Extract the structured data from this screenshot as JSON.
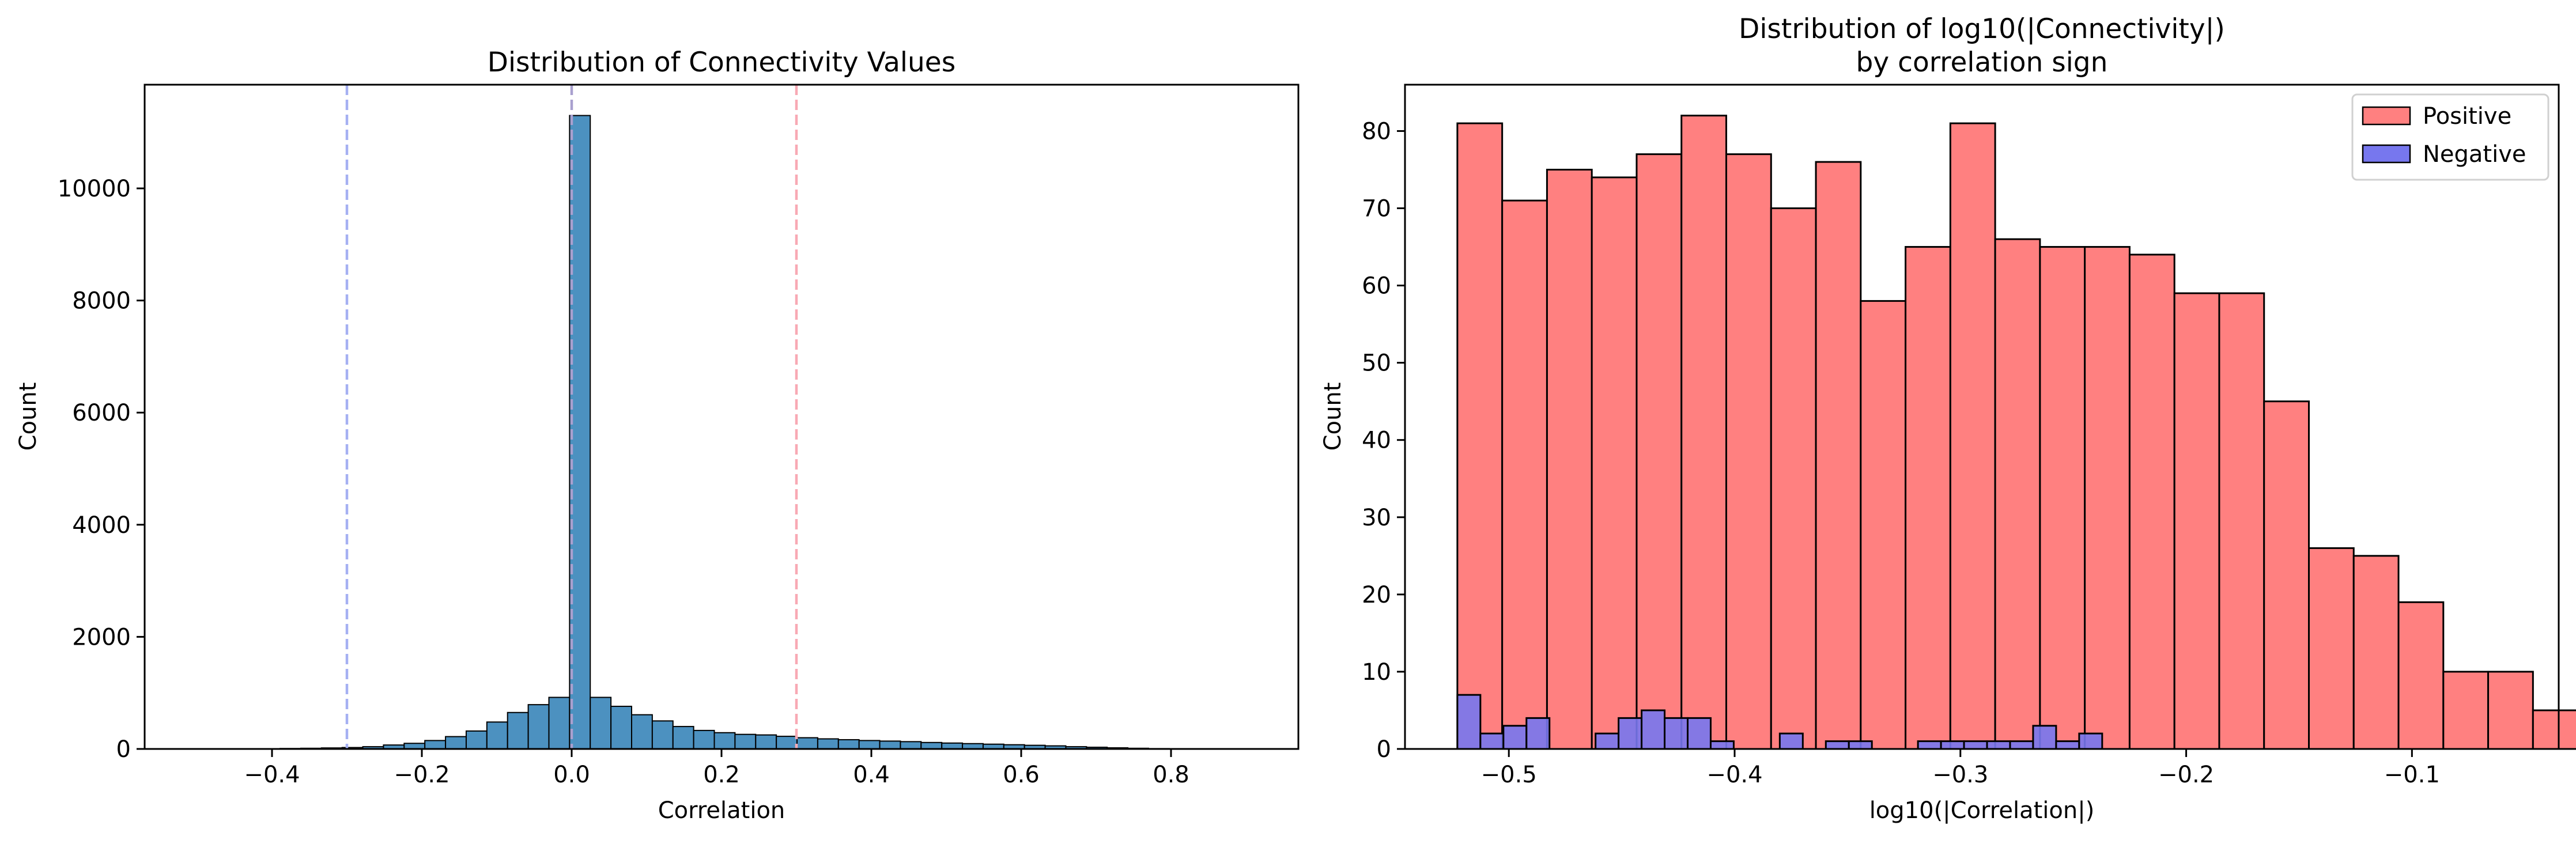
{
  "chart_data": [
    {
      "type": "histogram",
      "title": "Distribution of Connectivity Values",
      "xlabel": "Correlation",
      "ylabel": "Count",
      "xlim": [
        -0.57,
        0.97
      ],
      "ylim": [
        0,
        11850
      ],
      "xticks": [
        -0.4,
        -0.2,
        0.0,
        0.2,
        0.4,
        0.6,
        0.8
      ],
      "xtick_labels": [
        "−0.4",
        "−0.2",
        "0.0",
        "0.2",
        "0.4",
        "0.6",
        "0.8"
      ],
      "yticks": [
        0,
        2000,
        4000,
        6000,
        8000,
        10000
      ],
      "ytick_labels": [
        "0",
        "2000",
        "4000",
        "6000",
        "8000",
        "10000"
      ],
      "bin_width": 0.0276,
      "bins": [
        {
          "x0": -0.4444,
          "count": 3
        },
        {
          "x0": -0.4168,
          "count": 5
        },
        {
          "x0": -0.3892,
          "count": 8
        },
        {
          "x0": -0.3616,
          "count": 12
        },
        {
          "x0": -0.334,
          "count": 18
        },
        {
          "x0": -0.3064,
          "count": 25
        },
        {
          "x0": -0.2788,
          "count": 40
        },
        {
          "x0": -0.2512,
          "count": 70
        },
        {
          "x0": -0.2236,
          "count": 100
        },
        {
          "x0": -0.196,
          "count": 150
        },
        {
          "x0": -0.1684,
          "count": 220
        },
        {
          "x0": -0.1408,
          "count": 320
        },
        {
          "x0": -0.1132,
          "count": 480
        },
        {
          "x0": -0.0856,
          "count": 650
        },
        {
          "x0": -0.058,
          "count": 790
        },
        {
          "x0": -0.0304,
          "count": 920
        },
        {
          "x0": -0.0028,
          "count": 11300
        },
        {
          "x0": 0.0248,
          "count": 920
        },
        {
          "x0": 0.0524,
          "count": 760
        },
        {
          "x0": 0.08,
          "count": 610
        },
        {
          "x0": 0.1076,
          "count": 500
        },
        {
          "x0": 0.1352,
          "count": 400
        },
        {
          "x0": 0.1628,
          "count": 330
        },
        {
          "x0": 0.1904,
          "count": 290
        },
        {
          "x0": 0.218,
          "count": 260
        },
        {
          "x0": 0.2456,
          "count": 250
        },
        {
          "x0": 0.2732,
          "count": 225
        },
        {
          "x0": 0.3008,
          "count": 200
        },
        {
          "x0": 0.3284,
          "count": 180
        },
        {
          "x0": 0.356,
          "count": 165
        },
        {
          "x0": 0.3836,
          "count": 150
        },
        {
          "x0": 0.4112,
          "count": 140
        },
        {
          "x0": 0.4388,
          "count": 130
        },
        {
          "x0": 0.4664,
          "count": 115
        },
        {
          "x0": 0.494,
          "count": 105
        },
        {
          "x0": 0.5216,
          "count": 95
        },
        {
          "x0": 0.5492,
          "count": 85
        },
        {
          "x0": 0.5768,
          "count": 75
        },
        {
          "x0": 0.6044,
          "count": 65
        },
        {
          "x0": 0.632,
          "count": 55
        },
        {
          "x0": 0.6596,
          "count": 40
        },
        {
          "x0": 0.6872,
          "count": 30
        },
        {
          "x0": 0.7148,
          "count": 20
        },
        {
          "x0": 0.7424,
          "count": 12
        },
        {
          "x0": 0.77,
          "count": 6
        },
        {
          "x0": 0.7976,
          "count": 3
        }
      ],
      "bar_color": "#4c91c0",
      "reference_lines": [
        {
          "x": -0.3,
          "color": "#a5b0f2",
          "style": "dashed"
        },
        {
          "x": 0.0,
          "color": "#a9a0cf",
          "style": "dashed"
        },
        {
          "x": 0.3,
          "color": "#f8a9b4",
          "style": "dashed"
        }
      ]
    },
    {
      "type": "histogram",
      "title": "Distribution of log10(|Connectivity|)",
      "subtitle": "by correlation sign",
      "xlabel": "log10(|Correlation|)",
      "ylabel": "Count",
      "xlim": [
        -0.546,
        -0.035
      ],
      "ylim": [
        0,
        86
      ],
      "xticks": [
        -0.5,
        -0.4,
        -0.3,
        -0.2,
        -0.1
      ],
      "xtick_labels": [
        "−0.5",
        "−0.4",
        "−0.3",
        "−0.2",
        "−0.1"
      ],
      "yticks": [
        0,
        10,
        20,
        30,
        40,
        50,
        60,
        70,
        80
      ],
      "ytick_labels": [
        "0",
        "10",
        "20",
        "30",
        "40",
        "50",
        "60",
        "70",
        "80"
      ],
      "legend_position": "upper right",
      "series": [
        {
          "name": "Positive",
          "color": "#ff8080",
          "bin_width": 0.01985,
          "x_start": -0.5228,
          "counts": [
            81,
            71,
            75,
            74,
            77,
            82,
            77,
            70,
            76,
            58,
            65,
            81,
            66,
            65,
            65,
            64,
            59,
            59,
            45,
            26,
            25,
            19,
            10,
            10,
            5
          ]
        },
        {
          "name": "Negative",
          "color": "#7777ee",
          "bin_width": 0.0102,
          "x_start": -0.5228,
          "counts": [
            7,
            2,
            3,
            4,
            0,
            0,
            2,
            4,
            5,
            4,
            4,
            1,
            0,
            0,
            2,
            0,
            1,
            1,
            0,
            0,
            1,
            1,
            1,
            1,
            1,
            3,
            1,
            2
          ]
        }
      ]
    }
  ]
}
